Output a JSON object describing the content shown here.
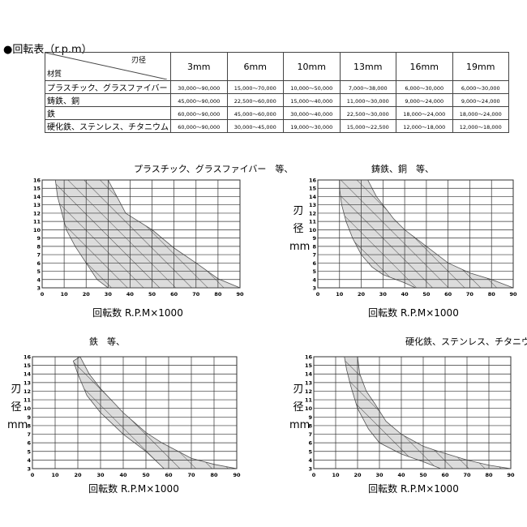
{
  "table": {
    "title": "●回転表（r.p.m）",
    "corner_top": "刃径",
    "corner_bottom": "材質",
    "columns": [
      "3mm",
      "6mm",
      "10mm",
      "13mm",
      "16mm",
      "19mm"
    ],
    "rows": [
      {
        "material": "プラスチック、グラスファイバー",
        "values": [
          "30,000～90,000",
          "15,000～70,000",
          "10,000～50,000",
          "7,000～38,000",
          "6,000～30,000",
          "6,000～30,000"
        ]
      },
      {
        "material": "鋳鉄、銅",
        "values": [
          "45,000～90,000",
          "22,500～60,000",
          "15,000～40,000",
          "11,000～30,000",
          "9,000～24,000",
          "9,000～24,000"
        ]
      },
      {
        "material": "鉄",
        "values": [
          "60,000～90,000",
          "45,000～60,000",
          "30,000～40,000",
          "22,500～30,000",
          "18,000～24,000",
          "18,000～24,000"
        ]
      },
      {
        "material": "硬化鉄、ステンレス、チタニウム",
        "values": [
          "60,000～90,000",
          "30,000～45,000",
          "19,000～30,000",
          "15,000～22,500",
          "12,000～18,000",
          "12,000～18,000"
        ]
      }
    ]
  },
  "chart_data": [
    {
      "type": "area",
      "title": "プラスチック、グラスファイバー　等、",
      "xlabel": "回転数 R.P.M×1000",
      "ylabel": "",
      "xlim": [
        0,
        90
      ],
      "ylim": [
        3,
        16
      ],
      "lower": [
        [
          6,
          16
        ],
        [
          7,
          14
        ],
        [
          9,
          12
        ],
        [
          11,
          10
        ],
        [
          15,
          8
        ],
        [
          20,
          6
        ],
        [
          25,
          4
        ],
        [
          30,
          3
        ]
      ],
      "upper": [
        [
          30,
          16
        ],
        [
          38,
          12
        ],
        [
          44,
          11
        ],
        [
          50,
          10
        ],
        [
          60,
          7.8
        ],
        [
          70,
          6
        ],
        [
          80,
          4.1
        ],
        [
          90,
          3
        ]
      ]
    },
    {
      "type": "area",
      "title": "鋳鉄、銅　等、",
      "xlabel": "回転数 R.P.M×1000",
      "ylabel": "刃径 mm",
      "xlim": [
        0,
        90
      ],
      "ylim": [
        3,
        16
      ],
      "lower": [
        [
          10,
          16
        ],
        [
          10,
          15
        ],
        [
          11,
          13
        ],
        [
          13,
          11
        ],
        [
          16,
          9
        ],
        [
          20,
          7
        ],
        [
          25,
          5.5
        ],
        [
          30,
          4.6
        ],
        [
          40,
          3.6
        ],
        [
          45,
          3
        ]
      ],
      "upper": [
        [
          23,
          16
        ],
        [
          27,
          14
        ],
        [
          30,
          13
        ],
        [
          35,
          11.3
        ],
        [
          40,
          10
        ],
        [
          50,
          8
        ],
        [
          60,
          6
        ],
        [
          70,
          4.8
        ],
        [
          80,
          4
        ],
        [
          90,
          3
        ]
      ]
    },
    {
      "type": "area",
      "title": "鉄　等、",
      "xlabel": "回転数 R.P.M×1000",
      "ylabel": "刃径 mm",
      "xlim": [
        0,
        90
      ],
      "ylim": [
        3,
        16
      ],
      "lower": [
        [
          18,
          15.5
        ],
        [
          20,
          14
        ],
        [
          24,
          11.5
        ],
        [
          30,
          9.5
        ],
        [
          40,
          7
        ],
        [
          50,
          5
        ],
        [
          58,
          3
        ]
      ],
      "upper": [
        [
          21,
          16
        ],
        [
          25,
          14
        ],
        [
          30,
          12.3
        ],
        [
          40,
          9.5
        ],
        [
          50,
          7.2
        ],
        [
          57,
          6
        ],
        [
          70,
          4.2
        ],
        [
          80,
          3.5
        ],
        [
          90,
          3
        ]
      ]
    },
    {
      "type": "area",
      "title": "硬化鉄、ステンレス、チタニウム　等、",
      "xlabel": "回転数 R.P.M×1000",
      "ylabel": "刃径 mm",
      "xlim": [
        0,
        90
      ],
      "ylim": [
        3,
        16
      ],
      "lower": [
        [
          14,
          16
        ],
        [
          15,
          14.5
        ],
        [
          17,
          12.5
        ],
        [
          20,
          10
        ],
        [
          25,
          7.6
        ],
        [
          30,
          6
        ],
        [
          40,
          4.7
        ],
        [
          50,
          3.8
        ],
        [
          58,
          3
        ]
      ],
      "upper": [
        [
          20,
          16
        ],
        [
          21,
          14
        ],
        [
          24,
          12
        ],
        [
          28,
          10.5
        ],
        [
          33,
          8.5
        ],
        [
          40,
          7
        ],
        [
          50,
          5.6
        ],
        [
          57,
          5
        ],
        [
          70,
          4
        ],
        [
          80,
          3.4
        ],
        [
          90,
          3
        ]
      ]
    }
  ],
  "y_ticks": [
    3,
    4,
    5,
    6,
    7,
    8,
    9,
    10,
    11,
    12,
    13,
    14,
    15,
    16
  ],
  "x_ticks": [
    0,
    10,
    20,
    30,
    40,
    50,
    60,
    70,
    80,
    90
  ],
  "colors": {
    "band": "#dcdcdc",
    "grid": "#333333"
  }
}
